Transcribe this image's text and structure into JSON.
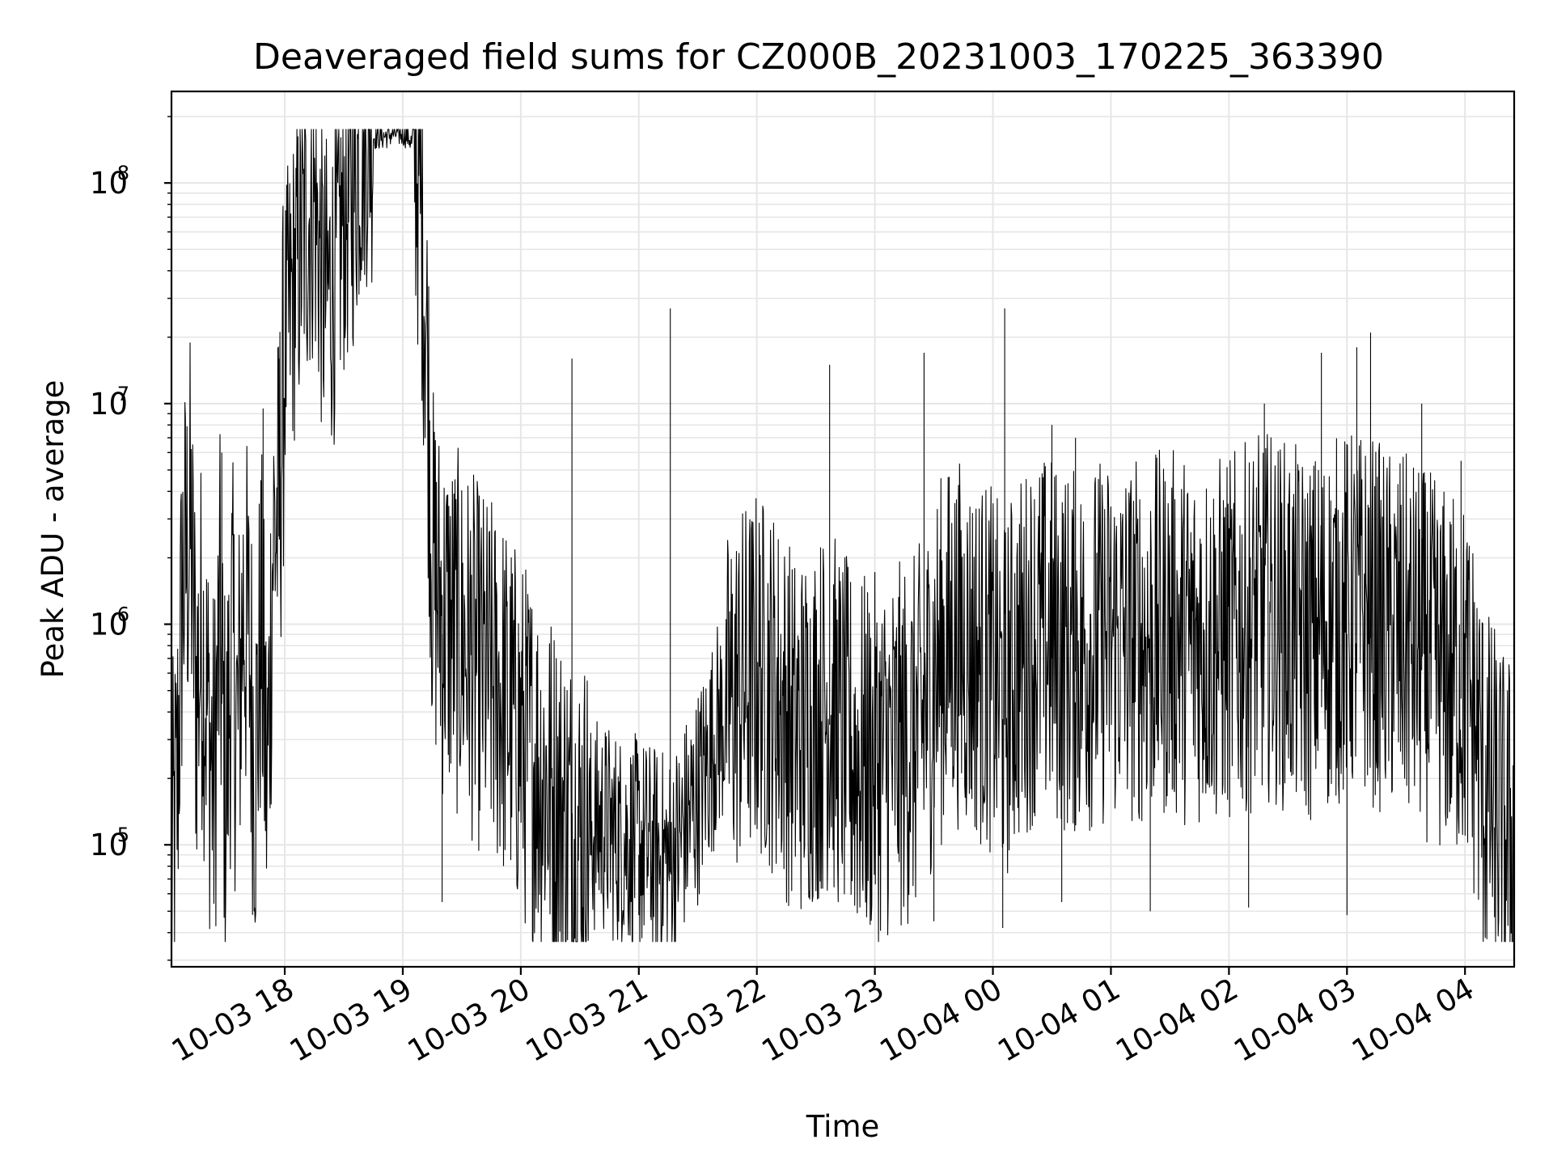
{
  "chart_data": {
    "type": "line",
    "title": "Deaveraged field sums for CZ000B_20231003_170225_363390",
    "xlabel": "Time",
    "ylabel": "Peak ADU - average",
    "yscale": "log",
    "xlim": [
      "2023-10-03T17:02:25",
      "2023-10-04T04:25:00"
    ],
    "ylim": [
      28000,
      260000000
    ],
    "grid": true,
    "line_color": "#000000",
    "x_ticks": [
      {
        "value": "2023-10-03T18:00:00",
        "label": "10-03 18"
      },
      {
        "value": "2023-10-03T19:00:00",
        "label": "10-03 19"
      },
      {
        "value": "2023-10-03T20:00:00",
        "label": "10-03 20"
      },
      {
        "value": "2023-10-03T21:00:00",
        "label": "10-03 21"
      },
      {
        "value": "2023-10-03T22:00:00",
        "label": "10-03 22"
      },
      {
        "value": "2023-10-03T23:00:00",
        "label": "10-03 23"
      },
      {
        "value": "2023-10-04T00:00:00",
        "label": "10-04 00"
      },
      {
        "value": "2023-10-04T01:00:00",
        "label": "10-04 01"
      },
      {
        "value": "2023-10-04T02:00:00",
        "label": "10-04 02"
      },
      {
        "value": "2023-10-04T03:00:00",
        "label": "10-04 03"
      },
      {
        "value": "2023-10-04T04:00:00",
        "label": "10-04 04"
      }
    ],
    "y_ticks": [
      {
        "value": 100000,
        "base": "10",
        "exp": "5"
      },
      {
        "value": 1000000,
        "base": "10",
        "exp": "6"
      },
      {
        "value": 10000000,
        "base": "10",
        "exp": "7"
      },
      {
        "value": 100000000,
        "base": "10",
        "exp": "8"
      }
    ],
    "series": [
      {
        "x": [
          "2023-10-03T17:02:25",
          "2023-10-03T17:05:00",
          "2023-10-03T17:08:00",
          "2023-10-03T17:12:00",
          "2023-10-03T17:15:00",
          "2023-10-03T17:18:00",
          "2023-10-03T17:21:00",
          "2023-10-03T17:24:00",
          "2023-10-03T17:27:00",
          "2023-10-03T17:30:00",
          "2023-10-03T17:33:00",
          "2023-10-03T17:36:00",
          "2023-10-03T17:39:00",
          "2023-10-03T17:42:00",
          "2023-10-03T17:45:00",
          "2023-10-03T17:48:00",
          "2023-10-03T17:51:00",
          "2023-10-03T17:54:00",
          "2023-10-03T17:57:00",
          "2023-10-03T18:00:00",
          "2023-10-03T18:05:00",
          "2023-10-03T18:10:00",
          "2023-10-03T18:15:00",
          "2023-10-03T18:20:00",
          "2023-10-03T18:25:00",
          "2023-10-03T18:30:00",
          "2023-10-03T18:35:00",
          "2023-10-03T18:40:00",
          "2023-10-03T18:45:00",
          "2023-10-03T18:50:00",
          "2023-10-03T18:55:00",
          "2023-10-03T19:00:00",
          "2023-10-03T19:03:00",
          "2023-10-03T19:06:00",
          "2023-10-03T19:09:00",
          "2023-10-03T19:12:00",
          "2023-10-03T19:15:00",
          "2023-10-03T19:20:00",
          "2023-10-03T19:25:00",
          "2023-10-03T19:30:00",
          "2023-10-03T19:40:00",
          "2023-10-03T19:50:00",
          "2023-10-03T20:00:00",
          "2023-10-03T20:10:00",
          "2023-10-03T20:20:00",
          "2023-10-03T20:26:00",
          "2023-10-03T20:30:00",
          "2023-10-03T20:40:00",
          "2023-10-03T20:50:00",
          "2023-10-03T21:00:00",
          "2023-10-03T21:10:00",
          "2023-10-03T21:16:00",
          "2023-10-03T21:20:00",
          "2023-10-03T21:30:00",
          "2023-10-03T21:40:00",
          "2023-10-03T21:50:00",
          "2023-10-03T22:00:00",
          "2023-10-03T22:10:00",
          "2023-10-03T22:20:00",
          "2023-10-03T22:37:00",
          "2023-10-03T22:40:00",
          "2023-10-03T22:50:00",
          "2023-10-03T23:00:00",
          "2023-10-03T23:10:00",
          "2023-10-03T23:20:00",
          "2023-10-03T23:25:00",
          "2023-10-03T23:30:00",
          "2023-10-03T23:40:00",
          "2023-10-03T23:50:00",
          "2023-10-04T00:00:00",
          "2023-10-04T00:06:00",
          "2023-10-04T00:10:00",
          "2023-10-04T00:20:00",
          "2023-10-04T00:30:00",
          "2023-10-04T00:40:00",
          "2023-10-04T00:50:00",
          "2023-10-04T01:00:00",
          "2023-10-04T01:10:00",
          "2023-10-04T01:20:00",
          "2023-10-04T01:30:00",
          "2023-10-04T01:40:00",
          "2023-10-04T01:50:00",
          "2023-10-04T02:00:00",
          "2023-10-04T02:10:00",
          "2023-10-04T02:20:00",
          "2023-10-04T02:30:00",
          "2023-10-04T02:40:00",
          "2023-10-04T02:50:00",
          "2023-10-04T03:00:00",
          "2023-10-04T03:05:00",
          "2023-10-04T03:10:00",
          "2023-10-04T03:20:00",
          "2023-10-04T03:30:00",
          "2023-10-04T03:40:00",
          "2023-10-04T03:50:00",
          "2023-10-04T04:00:00",
          "2023-10-04T04:05:00",
          "2023-10-04T04:10:00",
          "2023-10-04T04:15:00",
          "2023-10-04T04:20:00",
          "2023-10-04T04:25:00"
        ],
        "y": [
          60000,
          120000,
          1200000,
          2200000,
          400000,
          700000,
          300000,
          150000,
          800000,
          130000,
          700000,
          250000,
          1000000,
          600000,
          170000,
          800000,
          130000,
          2000000,
          2500000,
          15000000,
          30000000,
          50000000,
          70000000,
          25000000,
          30000000,
          60000000,
          80000000,
          150000000,
          160000000,
          160000000,
          165000000,
          165000000,
          160000000,
          140000000,
          70000000,
          20000000,
          1500000,
          900000,
          800000,
          700000,
          500000,
          400000,
          250000,
          180000,
          120000,
          100000,
          90000,
          110000,
          95000,
          90000,
          80000,
          75000,
          90000,
          150000,
          300000,
          400000,
          500000,
          400000,
          250000,
          350000,
          300000,
          200000,
          200000,
          220000,
          250000,
          300000,
          500000,
          700000,
          600000,
          500000,
          350000,
          500000,
          700000,
          700000,
          600000,
          650000,
          700000,
          700000,
          700000,
          750000,
          700000,
          700000,
          700000,
          800000,
          900000,
          800000,
          700000,
          800000,
          900000,
          900000,
          900000,
          750000,
          700000,
          600000,
          500000,
          450000,
          300000,
          150000,
          120000,
          90000,
          90000
        ]
      }
    ],
    "spikes": [
      {
        "x": "2023-10-03T17:28:00",
        "y": 6000000
      },
      {
        "x": "2023-10-03T17:49:00",
        "y": 9500000
      },
      {
        "x": "2023-10-03T17:57:00",
        "y": 16000000
      },
      {
        "x": "2023-10-03T20:26:00",
        "y": 16000000
      },
      {
        "x": "2023-10-03T21:16:00",
        "y": 27000000
      },
      {
        "x": "2023-10-03T22:37:00",
        "y": 15000000
      },
      {
        "x": "2023-10-03T23:25:00",
        "y": 17000000
      },
      {
        "x": "2023-10-04T00:06:00",
        "y": 27000000
      },
      {
        "x": "2023-10-04T00:30:00",
        "y": 8000000
      },
      {
        "x": "2023-10-04T00:42:00",
        "y": 7000000
      },
      {
        "x": "2023-10-04T02:18:00",
        "y": 10000000
      },
      {
        "x": "2023-10-04T02:47:00",
        "y": 17000000
      },
      {
        "x": "2023-10-04T03:05:00",
        "y": 18000000
      },
      {
        "x": "2023-10-04T03:12:00",
        "y": 21000000
      },
      {
        "x": "2023-10-04T03:38:00",
        "y": 10000000
      },
      {
        "x": "2023-10-04T03:58:00",
        "y": 5500000
      }
    ],
    "dips": [
      {
        "x": "2023-10-03T19:20:00",
        "y": 55000
      },
      {
        "x": "2023-10-03T21:00:00",
        "y": 48000
      },
      {
        "x": "2023-10-03T21:06:00",
        "y": 47000
      },
      {
        "x": "2023-10-03T23:30:00",
        "y": 45000
      },
      {
        "x": "2023-10-04T00:05:00",
        "y": 42000
      },
      {
        "x": "2023-10-04T00:35:00",
        "y": 55000
      },
      {
        "x": "2023-10-04T01:20:00",
        "y": 50000
      },
      {
        "x": "2023-10-04T02:10:00",
        "y": 52000
      },
      {
        "x": "2023-10-04T03:00:00",
        "y": 48000
      },
      {
        "x": "2023-10-04T04:15:00",
        "y": 47000
      }
    ]
  }
}
